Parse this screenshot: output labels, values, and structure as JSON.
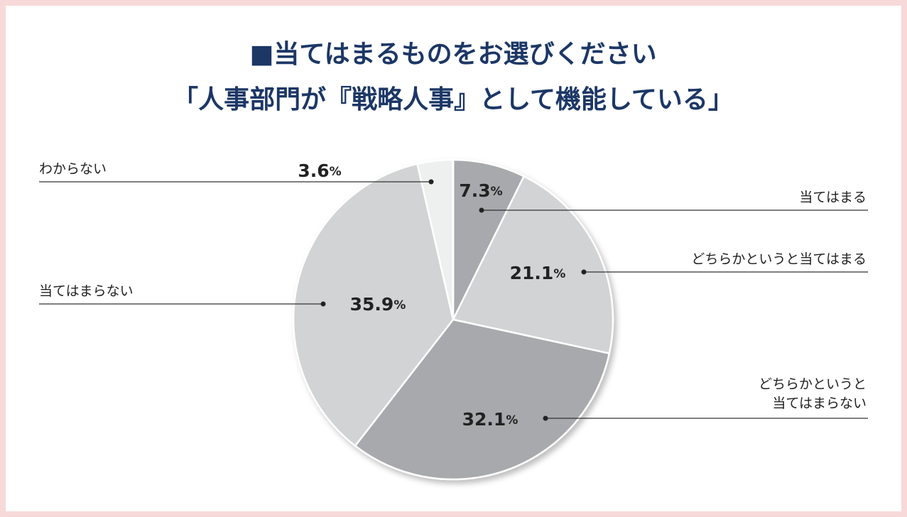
{
  "chart_data": {
    "type": "pie",
    "title": [
      "■当てはまるものをお選びください",
      "「人事部門が『戦略人事』として機能している」"
    ],
    "categories": [
      "当てはまる",
      "どちらかというと当てはまる",
      "どちらかというと\n当てはまらない",
      "当てはまらない",
      "わからない"
    ],
    "values": [
      7.3,
      21.1,
      32.1,
      35.9,
      3.6
    ],
    "value_labels": [
      "7.3%",
      "21.1%",
      "32.1%",
      "35.9%",
      "3.6%"
    ],
    "colors": [
      "#a7a9ac",
      "#d1d3d4",
      "#a7a9ac",
      "#d1d3d4",
      "#eef0f0"
    ]
  }
}
